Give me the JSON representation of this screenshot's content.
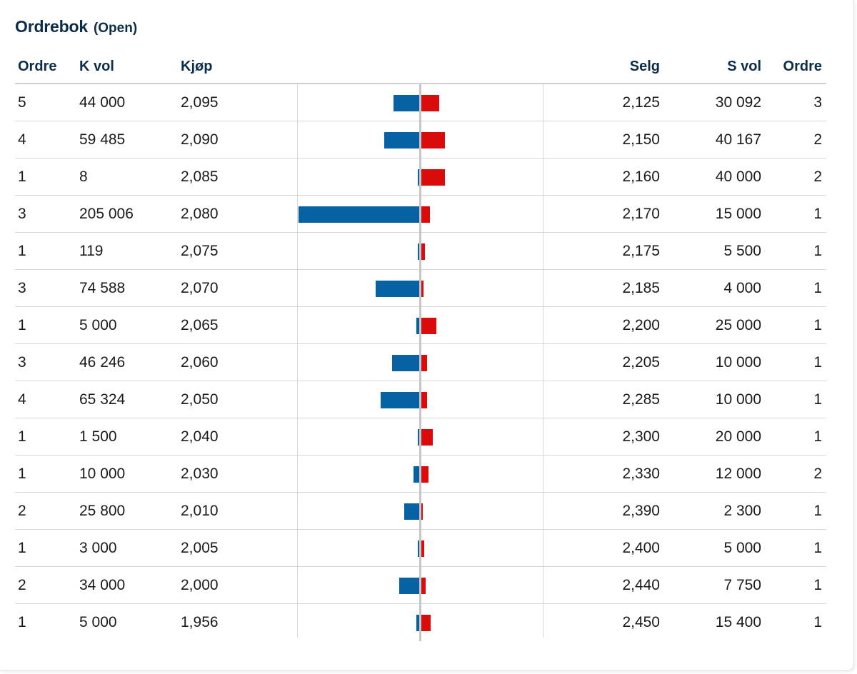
{
  "header": {
    "title": "Ordrebok",
    "status": "(Open)"
  },
  "columns": {
    "buy_orders": "Ordre",
    "buy_volume": "K vol",
    "bid": "Kjøp",
    "ask": "Selg",
    "sell_volume": "S vol",
    "sell_orders": "Ordre"
  },
  "colors": {
    "buy_bar": "#0662a3",
    "sell_bar": "#d90b0b",
    "title": "#0c2d48"
  },
  "rows": [
    {
      "buy_orders": "5",
      "buy_volume": "44 000",
      "bid": "2,095",
      "ask": "2,125",
      "sell_volume": "30 092",
      "sell_orders": "3",
      "buy_bar_volume": 44000,
      "sell_bar_volume": 30092
    },
    {
      "buy_orders": "4",
      "buy_volume": "59 485",
      "bid": "2,090",
      "ask": "2,150",
      "sell_volume": "40 167",
      "sell_orders": "2",
      "buy_bar_volume": 59485,
      "sell_bar_volume": 40167
    },
    {
      "buy_orders": "1",
      "buy_volume": "8",
      "bid": "2,085",
      "ask": "2,160",
      "sell_volume": "40 000",
      "sell_orders": "2",
      "buy_bar_volume": 8,
      "sell_bar_volume": 40000
    },
    {
      "buy_orders": "3",
      "buy_volume": "205 006",
      "bid": "2,080",
      "ask": "2,170",
      "sell_volume": "15 000",
      "sell_orders": "1",
      "buy_bar_volume": 205006,
      "sell_bar_volume": 15000
    },
    {
      "buy_orders": "1",
      "buy_volume": "119",
      "bid": "2,075",
      "ask": "2,175",
      "sell_volume": "5 500",
      "sell_orders": "1",
      "buy_bar_volume": 119,
      "sell_bar_volume": 5500
    },
    {
      "buy_orders": "3",
      "buy_volume": "74 588",
      "bid": "2,070",
      "ask": "2,185",
      "sell_volume": "4 000",
      "sell_orders": "1",
      "buy_bar_volume": 74588,
      "sell_bar_volume": 4000
    },
    {
      "buy_orders": "1",
      "buy_volume": "5 000",
      "bid": "2,065",
      "ask": "2,200",
      "sell_volume": "25 000",
      "sell_orders": "1",
      "buy_bar_volume": 5000,
      "sell_bar_volume": 25000
    },
    {
      "buy_orders": "3",
      "buy_volume": "46 246",
      "bid": "2,060",
      "ask": "2,205",
      "sell_volume": "10 000",
      "sell_orders": "1",
      "buy_bar_volume": 46246,
      "sell_bar_volume": 10000
    },
    {
      "buy_orders": "4",
      "buy_volume": "65 324",
      "bid": "2,050",
      "ask": "2,285",
      "sell_volume": "10 000",
      "sell_orders": "1",
      "buy_bar_volume": 65324,
      "sell_bar_volume": 10000
    },
    {
      "buy_orders": "1",
      "buy_volume": "1 500",
      "bid": "2,040",
      "ask": "2,300",
      "sell_volume": "20 000",
      "sell_orders": "1",
      "buy_bar_volume": 1500,
      "sell_bar_volume": 20000
    },
    {
      "buy_orders": "1",
      "buy_volume": "10 000",
      "bid": "2,030",
      "ask": "2,330",
      "sell_volume": "12 000",
      "sell_orders": "2",
      "buy_bar_volume": 10000,
      "sell_bar_volume": 12000
    },
    {
      "buy_orders": "2",
      "buy_volume": "25 800",
      "bid": "2,010",
      "ask": "2,390",
      "sell_volume": "2 300",
      "sell_orders": "1",
      "buy_bar_volume": 25800,
      "sell_bar_volume": 2300
    },
    {
      "buy_orders": "1",
      "buy_volume": "3 000",
      "bid": "2,005",
      "ask": "2,400",
      "sell_volume": "5 000",
      "sell_orders": "1",
      "buy_bar_volume": 3000,
      "sell_bar_volume": 5000
    },
    {
      "buy_orders": "2",
      "buy_volume": "34 000",
      "bid": "2,000",
      "ask": "2,440",
      "sell_volume": "7 750",
      "sell_orders": "1",
      "buy_bar_volume": 34000,
      "sell_bar_volume": 7750
    },
    {
      "buy_orders": "1",
      "buy_volume": "5 000",
      "bid": "1,956",
      "ask": "2,450",
      "sell_volume": "15 400",
      "sell_orders": "1",
      "buy_bar_volume": 5000,
      "sell_bar_volume": 15400
    }
  ]
}
